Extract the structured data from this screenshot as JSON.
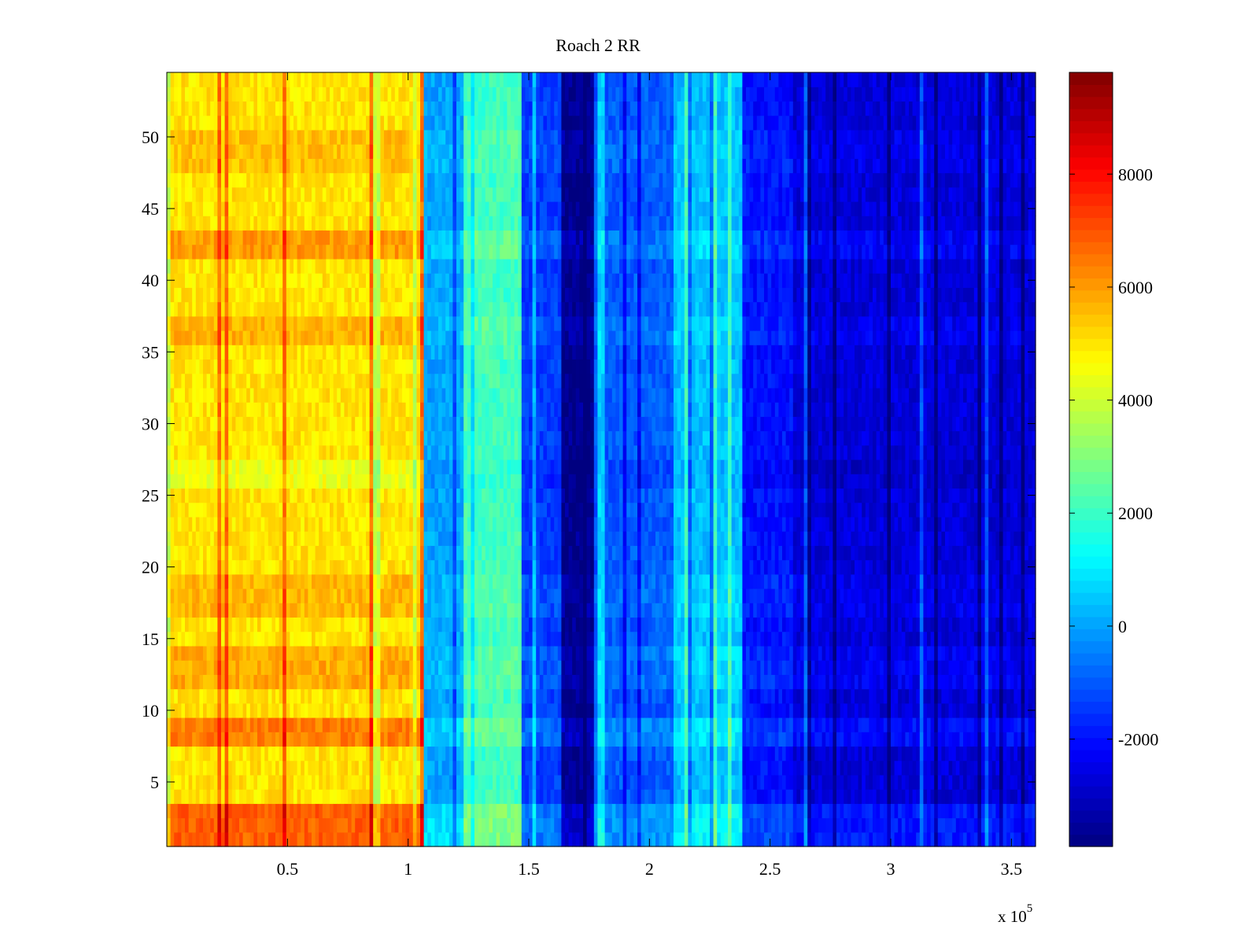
{
  "chart_data": {
    "type": "heatmap",
    "title": "Roach 2 RR",
    "xlabel": "",
    "ylabel": "",
    "x_multiplier": "x 10",
    "x_multiplier_exp": "5",
    "xlim": [
      0,
      3.6
    ],
    "ylim": [
      0.5,
      54.5
    ],
    "x_ticks": [
      {
        "value": 0.5,
        "label": "0.5"
      },
      {
        "value": 1,
        "label": "1"
      },
      {
        "value": 1.5,
        "label": "1.5"
      },
      {
        "value": 2,
        "label": "2"
      },
      {
        "value": 2.5,
        "label": "2.5"
      },
      {
        "value": 3,
        "label": "3"
      },
      {
        "value": 3.5,
        "label": "3.5"
      }
    ],
    "y_ticks": [
      {
        "value": 5,
        "label": "5"
      },
      {
        "value": 10,
        "label": "10"
      },
      {
        "value": 15,
        "label": "15"
      },
      {
        "value": 20,
        "label": "20"
      },
      {
        "value": 25,
        "label": "25"
      },
      {
        "value": 30,
        "label": "30"
      },
      {
        "value": 35,
        "label": "35"
      },
      {
        "value": 40,
        "label": "40"
      },
      {
        "value": 45,
        "label": "45"
      },
      {
        "value": 50,
        "label": "50"
      }
    ],
    "colormap": "jet",
    "color_range": [
      -3900,
      9800
    ],
    "colorbar_ticks": [
      {
        "value": -2000,
        "label": "-2000"
      },
      {
        "value": 0,
        "label": "0"
      },
      {
        "value": 2000,
        "label": "2000"
      },
      {
        "value": 4000,
        "label": "4000"
      },
      {
        "value": 6000,
        "label": "6000"
      },
      {
        "value": 8000,
        "label": "8000"
      }
    ],
    "column_bands": [
      {
        "x0": 0.0,
        "x1": 1.07,
        "value": 5000
      },
      {
        "x0": 1.07,
        "x1": 1.23,
        "value": 0
      },
      {
        "x0": 1.23,
        "x1": 1.47,
        "value": 2100
      },
      {
        "x0": 1.47,
        "x1": 1.64,
        "value": -1400
      },
      {
        "x0": 1.64,
        "x1": 1.77,
        "value": -3700
      },
      {
        "x0": 1.77,
        "x1": 2.1,
        "value": -1000
      },
      {
        "x0": 2.1,
        "x1": 2.38,
        "value": 400
      },
      {
        "x0": 2.38,
        "x1": 2.6,
        "value": -2000
      },
      {
        "x0": 2.6,
        "x1": 3.6,
        "value": -2700
      }
    ],
    "row_offsets": [
      {
        "y0": 0.5,
        "y1": 3.5,
        "value": 1800
      },
      {
        "y0": 7.5,
        "y1": 9.5,
        "value": 1400
      },
      {
        "y0": 11.5,
        "y1": 14.5,
        "value": 800
      },
      {
        "y0": 16.5,
        "y1": 19.5,
        "value": 600
      },
      {
        "y0": 25.5,
        "y1": 27.5,
        "value": -500
      },
      {
        "y0": 35.5,
        "y1": 37.5,
        "value": 700
      },
      {
        "y0": 41.5,
        "y1": 43.5,
        "value": 1000
      },
      {
        "y0": 47.5,
        "y1": 50.5,
        "value": 500
      }
    ]
  }
}
